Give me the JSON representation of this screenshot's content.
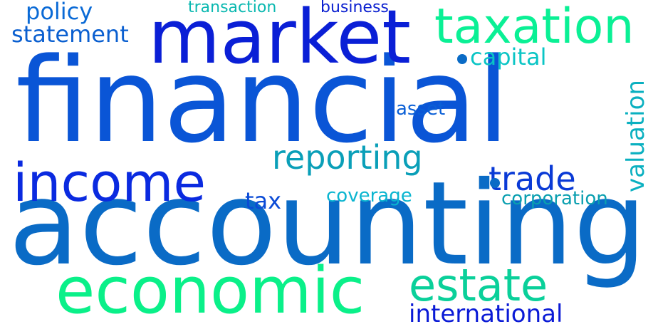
{
  "words": {
    "financial": {
      "text": "financial",
      "color": "#0a55d6"
    },
    "accounting": {
      "text": "accounting",
      "color": "#0a6bc6"
    },
    "market": {
      "text": "market",
      "color": "#0a1fd6"
    },
    "economic": {
      "text": "economic",
      "color": "#0af089"
    },
    "taxation": {
      "text": "taxation",
      "color": "#0af095"
    },
    "income": {
      "text": "income",
      "color": "#0a2ae0"
    },
    "reporting": {
      "text": "reporting",
      "color": "#0a9fb8"
    },
    "estate": {
      "text": "estate",
      "color": "#0ad09a"
    },
    "trade": {
      "text": "trade",
      "color": "#0a3ad6"
    },
    "international": {
      "text": "international",
      "color": "#0a1ad6"
    },
    "statement": {
      "text": "statement",
      "color": "#0a5fd0"
    },
    "policy": {
      "text": "policy",
      "color": "#0a6ad6"
    },
    "capital": {
      "text": "capital",
      "color": "#0ac5c5"
    },
    "valuation": {
      "text": "valuation",
      "color": "#0ab0c0"
    },
    "corporation": {
      "text": "corporation",
      "color": "#0a9fb0"
    },
    "tax": {
      "text": "tax",
      "color": "#0a4ad6"
    },
    "coverage": {
      "text": "coverage",
      "color": "#0ab5d0"
    },
    "asset": {
      "text": "asset",
      "color": "#0a5fd6"
    },
    "transaction": {
      "text": "transaction",
      "color": "#0ab8b0"
    },
    "business": {
      "text": "business",
      "color": "#0a1fd0"
    }
  }
}
